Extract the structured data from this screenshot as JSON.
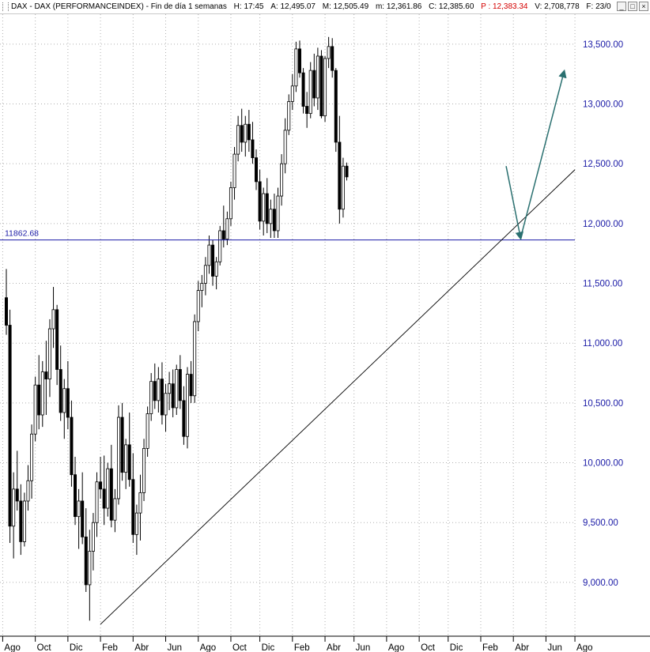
{
  "header": {
    "symbol": "DAX - DAX (PERFORMANCEINDEX)",
    "period": "Fin de día 1 semanas",
    "h_label": "H:",
    "h_value": "17:45",
    "a_label": "A:",
    "a_value": "12,495.07",
    "M_label": "M:",
    "M_value": "12,505.49",
    "m_label": "m:",
    "m_value": "12,361.86",
    "c_label": "C:",
    "c_value": "12,385.60",
    "p_label": "P :",
    "p_value": "12,383.34",
    "v_label": "V:",
    "v_value": "2,708,778",
    "f_label": "F:",
    "f_value": "23/0",
    "buttons": {
      "minimize": "_",
      "restore": "□",
      "close": "×"
    }
  },
  "colors": {
    "price_axis": "#1a1aa6",
    "support_line": "#1a1aa6",
    "trendline": "#000000",
    "forecast_arrow": "#2a7070",
    "grid": "#b0b0b0",
    "candle": "#000000"
  },
  "chart_data": {
    "type": "candlestick",
    "timeframe": "weekly",
    "ylim": [
      8550,
      13750
    ],
    "y_ticks": [
      9000,
      9500,
      10000,
      10500,
      11000,
      11500,
      12000,
      12500,
      13000,
      13500
    ],
    "y_tick_labels": [
      "9,000.00",
      "9,500.00",
      "10,000.00",
      "10,500.00",
      "11,000.00",
      "11,500.00",
      "12,000.00",
      "12,500.00",
      "13,000.00",
      "13,500.00"
    ],
    "x_tick_labels": [
      "Ago",
      "Oct",
      "Dic",
      "Feb",
      "Abr",
      "Jun",
      "Ago",
      "Oct",
      "Dic",
      "Feb",
      "Abr",
      "Jun",
      "Ago",
      "Oct",
      "Dic",
      "Feb",
      "Abr",
      "Jun",
      "Ago"
    ],
    "x_tick_bars": [
      -1,
      8,
      17,
      26,
      35,
      44,
      53,
      62,
      70,
      79,
      88,
      96,
      105,
      114,
      122,
      131,
      140,
      149,
      157
    ],
    "grid": "dotted",
    "support_level": 11862.68,
    "support_label": "11862.68",
    "trendline": {
      "from": [
        26,
        8650
      ],
      "to": [
        157,
        12450
      ]
    },
    "forecast_path": [
      [
        138,
        12480
      ],
      [
        142,
        11880
      ],
      [
        154,
        13270
      ]
    ],
    "bars": [
      [
        11380,
        11620,
        11070,
        11150
      ],
      [
        11150,
        11280,
        9330,
        9470
      ],
      [
        9470,
        9920,
        9200,
        9780
      ],
      [
        9780,
        10100,
        9600,
        9680
      ],
      [
        9680,
        9820,
        9230,
        9340
      ],
      [
        9340,
        9750,
        9300,
        9680
      ],
      [
        9680,
        9980,
        9600,
        9850
      ],
      [
        9850,
        10320,
        9700,
        10240
      ],
      [
        10240,
        10720,
        10180,
        10650
      ],
      [
        10650,
        10900,
        10280,
        10400
      ],
      [
        10400,
        10850,
        10300,
        10760
      ],
      [
        10760,
        11020,
        10400,
        10700
      ],
      [
        10700,
        11200,
        10550,
        11120
      ],
      [
        11120,
        11470,
        10960,
        11280
      ],
      [
        11280,
        11320,
        10650,
        10780
      ],
      [
        10780,
        10980,
        10350,
        10420
      ],
      [
        10420,
        10700,
        10200,
        10620
      ],
      [
        10620,
        10850,
        10280,
        10380
      ],
      [
        10380,
        10520,
        9800,
        9900
      ],
      [
        9900,
        10050,
        9480,
        9550
      ],
      [
        9550,
        9780,
        9280,
        9680
      ],
      [
        9680,
        9920,
        9320,
        9380
      ],
      [
        9380,
        9620,
        8920,
        8980
      ],
      [
        8980,
        9440,
        8680,
        9260
      ],
      [
        9260,
        9580,
        9100,
        9500
      ],
      [
        9500,
        9920,
        9380,
        9840
      ],
      [
        9840,
        10050,
        9700,
        9780
      ],
      [
        9780,
        10060,
        9480,
        9620
      ],
      [
        9620,
        10000,
        9550,
        9950
      ],
      [
        9950,
        10150,
        9460,
        9520
      ],
      [
        9520,
        9780,
        9420,
        9700
      ],
      [
        9700,
        10480,
        9650,
        10380
      ],
      [
        10380,
        10500,
        9850,
        9920
      ],
      [
        9920,
        10200,
        9780,
        10150
      ],
      [
        10150,
        10420,
        9800,
        9860
      ],
      [
        9860,
        10080,
        9330,
        9400
      ],
      [
        9400,
        9650,
        9230,
        9580
      ],
      [
        9580,
        9900,
        9350,
        9750
      ],
      [
        9750,
        10200,
        9680,
        10120
      ],
      [
        10120,
        10470,
        10050,
        10410
      ],
      [
        10410,
        10750,
        10350,
        10680
      ],
      [
        10680,
        10830,
        10450,
        10520
      ],
      [
        10520,
        10800,
        10420,
        10700
      ],
      [
        10700,
        10840,
        10320,
        10400
      ],
      [
        10400,
        10660,
        10260,
        10580
      ],
      [
        10580,
        10760,
        10440,
        10660
      ],
      [
        10660,
        10780,
        10380,
        10460
      ],
      [
        10460,
        10820,
        10400,
        10780
      ],
      [
        10780,
        10900,
        10450,
        10520
      ],
      [
        10520,
        10640,
        10150,
        10220
      ],
      [
        10220,
        10800,
        10120,
        10740
      ],
      [
        10740,
        10850,
        10500,
        10560
      ],
      [
        10560,
        11240,
        10500,
        11180
      ],
      [
        11180,
        11520,
        11100,
        11440
      ],
      [
        11440,
        11570,
        11300,
        11500
      ],
      [
        11500,
        11720,
        11400,
        11650
      ],
      [
        11650,
        11900,
        11580,
        11820
      ],
      [
        11820,
        11860,
        11480,
        11560
      ],
      [
        11560,
        11720,
        11450,
        11680
      ],
      [
        11680,
        11980,
        11650,
        11940
      ],
      [
        11940,
        12150,
        11800,
        11870
      ],
      [
        11870,
        12100,
        11820,
        12040
      ],
      [
        12040,
        12350,
        11980,
        12300
      ],
      [
        12300,
        12640,
        12200,
        12580
      ],
      [
        12580,
        12900,
        12520,
        12820
      ],
      [
        12820,
        12960,
        12600,
        12680
      ],
      [
        12680,
        12900,
        12560,
        12830
      ],
      [
        12830,
        12950,
        12600,
        12700
      ],
      [
        12700,
        12850,
        12500,
        12550
      ],
      [
        12550,
        12620,
        12280,
        12350
      ],
      [
        12350,
        12450,
        11950,
        12020
      ],
      [
        12020,
        12300,
        11900,
        12250
      ],
      [
        12250,
        12380,
        11920,
        12000
      ],
      [
        12000,
        12200,
        11880,
        12120
      ],
      [
        12120,
        12250,
        11880,
        11940
      ],
      [
        11940,
        12300,
        11880,
        12230
      ],
      [
        12230,
        12580,
        12150,
        12500
      ],
      [
        12500,
        12880,
        12420,
        12780
      ],
      [
        12780,
        13080,
        12740,
        13020
      ],
      [
        13020,
        13250,
        12950,
        13150
      ],
      [
        13150,
        13520,
        13100,
        13460
      ],
      [
        13460,
        13530,
        13220,
        13260
      ],
      [
        13260,
        13300,
        12920,
        12980
      ],
      [
        12980,
        13100,
        12800,
        12920
      ],
      [
        12920,
        13350,
        12880,
        13280
      ],
      [
        13280,
        13420,
        12980,
        13050
      ],
      [
        13050,
        13470,
        12950,
        13400
      ],
      [
        13400,
        13450,
        12880,
        12900
      ],
      [
        12900,
        13400,
        12850,
        13380
      ],
      [
        13380,
        13560,
        13300,
        13480
      ],
      [
        13480,
        13550,
        13220,
        13280
      ],
      [
        13280,
        13300,
        12600,
        12680
      ],
      [
        12680,
        12900,
        12000,
        12120
      ],
      [
        12120,
        12550,
        12050,
        12480
      ],
      [
        12480,
        12510,
        12360,
        12390
      ]
    ]
  }
}
